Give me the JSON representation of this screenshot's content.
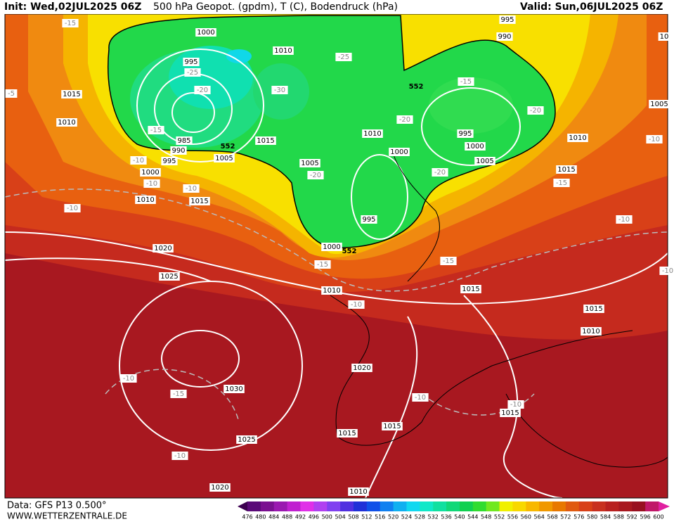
{
  "header": {
    "init": "Init: Wed,02JUL2025 06Z",
    "title": "500 hPa Geopot. (gpdm), T (C), Bodendruck (hPa)",
    "valid": "Valid: Sun,06JUL2025 06Z"
  },
  "footer": {
    "source": "Data: GFS P13 0.500°",
    "site": "WWW.WETTERZENTRALE.DE"
  },
  "colorbar": {
    "labels": [
      476,
      480,
      484,
      488,
      492,
      496,
      500,
      504,
      508,
      512,
      516,
      520,
      524,
      528,
      532,
      536,
      540,
      544,
      548,
      552,
      556,
      560,
      564,
      568,
      572,
      576,
      580,
      584,
      588,
      592,
      596,
      600
    ],
    "colors": [
      "#3c0050",
      "#5a0a78",
      "#7a1090",
      "#9a18b0",
      "#c020d0",
      "#e030e8",
      "#b040f0",
      "#8040f0",
      "#5030e0",
      "#2030d8",
      "#1050e8",
      "#1080f0",
      "#10b0f0",
      "#10d8f0",
      "#10e8c8",
      "#10e0a0",
      "#10d878",
      "#10d050",
      "#30dc30",
      "#70e820",
      "#f0f000",
      "#f8d800",
      "#f8b800",
      "#f09800",
      "#e87800",
      "#e05a10",
      "#d84018",
      "#c83020",
      "#b82020",
      "#a81820",
      "#981020",
      "#c01868",
      "#e020a0"
    ]
  },
  "map": {
    "isobar_labels": [
      1000,
      995,
      1010,
      1015,
      1010,
      985,
      990,
      995,
      1005,
      1015,
      1010,
      1000,
      1005,
      995,
      1000,
      1005,
      1010,
      1015,
      1000,
      1010,
      1015,
      995,
      1000,
      1020,
      1025,
      1010,
      1015,
      1015,
      1010,
      1020,
      1030,
      1015,
      1015,
      1015,
      1025,
      1020,
      1010,
      995,
      990,
      1005,
      10
    ],
    "temperature_labels": [
      -15,
      -5,
      -25,
      -20,
      -30,
      -25,
      -15,
      -10,
      -10,
      -10,
      -10,
      -15,
      -20,
      -20,
      -20,
      -20,
      -10,
      -15,
      -10,
      -15,
      -15,
      -10,
      -10,
      -15,
      -10,
      -10,
      -10,
      -10
    ],
    "height_labels": [
      552,
      552,
      552
    ]
  }
}
